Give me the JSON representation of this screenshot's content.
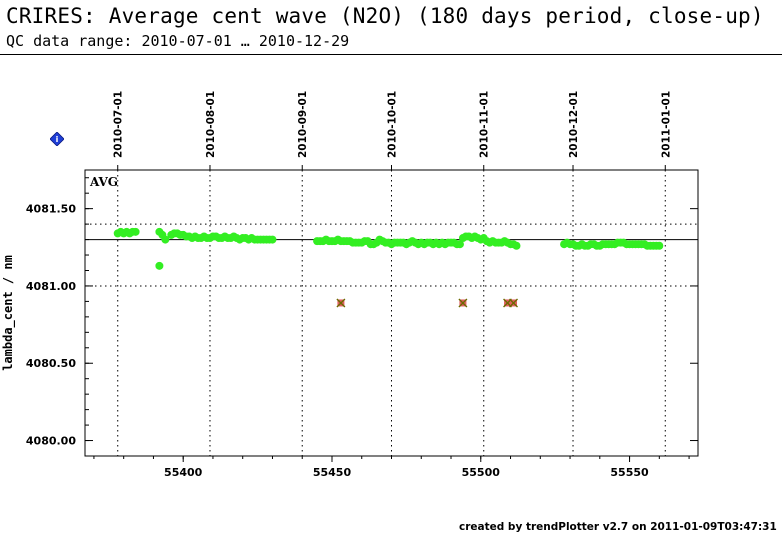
{
  "header": {
    "title": "CRIRES: Average cent wave (N2O) (180 days period, close-up)",
    "subtitle": "QC data range: 2010-07-01 … 2010-12-29"
  },
  "footer": {
    "text": "created by trendPlotter v2.7 on 2011-01-09T03:47:31"
  },
  "marker": {
    "icon": "info-diamond-icon",
    "label": "i",
    "color": "#1f3fd6"
  },
  "colors": {
    "points": "#33ee22",
    "outlier_fill": "#e06060",
    "outlier_cross": "#6a6a00",
    "reference": "#000000",
    "grid": "#000000"
  },
  "chart_data": {
    "type": "scatter",
    "ylabel": "lambda_cent / nm",
    "annotation": "AVG",
    "xlim": [
      55367,
      55573
    ],
    "ylim": [
      4079.9,
      4081.75
    ],
    "x_ticks": [
      55400,
      55450,
      55500,
      55550
    ],
    "x_tick_labels": [
      "55400",
      "55450",
      "55500",
      "55550"
    ],
    "y_ticks": [
      4080.0,
      4080.5,
      4081.0,
      4081.5
    ],
    "y_tick_labels": [
      "4080.00",
      "4080.50",
      "4081.00",
      "4081.50"
    ],
    "date_ticks": [
      {
        "mjd": 55378,
        "label": "2010-07-01"
      },
      {
        "mjd": 55409,
        "label": "2010-08-01"
      },
      {
        "mjd": 55440,
        "label": "2010-09-01"
      },
      {
        "mjd": 55470,
        "label": "2010-10-01"
      },
      {
        "mjd": 55501,
        "label": "2010-11-01"
      },
      {
        "mjd": 55531,
        "label": "2010-12-01"
      },
      {
        "mjd": 55562,
        "label": "2011-01-01"
      }
    ],
    "reference_line": 4081.3,
    "reference_dotted": [
      4081.4,
      4081.0
    ],
    "series": [
      {
        "x": [
          55378,
          55379,
          55380,
          55381,
          55382,
          55383,
          55384,
          55392,
          55393,
          55394,
          55396,
          55397,
          55398,
          55399,
          55400,
          55401,
          55402,
          55403,
          55404,
          55405,
          55406,
          55407,
          55408,
          55409,
          55410,
          55411,
          55412,
          55413,
          55414,
          55415,
          55416,
          55417,
          55418,
          55419,
          55420,
          55421,
          55422,
          55423,
          55424,
          55425,
          55426,
          55427,
          55428,
          55429,
          55430,
          55445,
          55446,
          55447,
          55448,
          55449,
          55450,
          55451,
          55452,
          55453,
          55454,
          55455,
          55456,
          55457,
          55458,
          55459,
          55460,
          55461,
          55462,
          55463,
          55464,
          55465,
          55466,
          55467,
          55468,
          55469,
          55470,
          55471,
          55472,
          55473,
          55474,
          55475,
          55476,
          55477,
          55478,
          55479,
          55480,
          55481,
          55482,
          55483,
          55484,
          55485,
          55486,
          55487,
          55488,
          55489,
          55490,
          55491,
          55492,
          55493,
          55494,
          55495,
          55496,
          55497,
          55498,
          55499,
          55500,
          55501,
          55502,
          55503,
          55504,
          55505,
          55506,
          55507,
          55508,
          55509,
          55510,
          55511,
          55512,
          55528,
          55529,
          55530,
          55531,
          55532,
          55533,
          55534,
          55535,
          55536,
          55537,
          55538,
          55539,
          55540,
          55541,
          55542,
          55543,
          55544,
          55545,
          55546,
          55547,
          55548,
          55549,
          55550,
          55551,
          55552,
          55553,
          55554,
          55555,
          55556,
          55557,
          55558,
          55559,
          55560,
          55392
        ],
        "y": [
          4081.34,
          4081.35,
          4081.34,
          4081.35,
          4081.34,
          4081.35,
          4081.35,
          4081.35,
          4081.33,
          4081.3,
          4081.33,
          4081.34,
          4081.34,
          4081.33,
          4081.33,
          4081.32,
          4081.32,
          4081.31,
          4081.32,
          4081.31,
          4081.31,
          4081.32,
          4081.31,
          4081.31,
          4081.32,
          4081.32,
          4081.31,
          4081.31,
          4081.32,
          4081.31,
          4081.31,
          4081.32,
          4081.31,
          4081.3,
          4081.31,
          4081.31,
          4081.3,
          4081.31,
          4081.3,
          4081.3,
          4081.3,
          4081.3,
          4081.3,
          4081.3,
          4081.3,
          4081.29,
          4081.29,
          4081.29,
          4081.3,
          4081.29,
          4081.29,
          4081.29,
          4081.3,
          4081.29,
          4081.29,
          4081.29,
          4081.29,
          4081.28,
          4081.28,
          4081.28,
          4081.28,
          4081.29,
          4081.29,
          4081.27,
          4081.27,
          4081.28,
          4081.3,
          4081.29,
          4081.28,
          4081.28,
          4081.27,
          4081.28,
          4081.28,
          4081.28,
          4081.28,
          4081.27,
          4081.28,
          4081.29,
          4081.28,
          4081.27,
          4081.28,
          4081.27,
          4081.28,
          4081.28,
          4081.27,
          4081.28,
          4081.27,
          4081.28,
          4081.27,
          4081.28,
          4081.28,
          4081.28,
          4081.27,
          4081.27,
          4081.31,
          4081.32,
          4081.32,
          4081.31,
          4081.32,
          4081.31,
          4081.3,
          4081.31,
          4081.29,
          4081.28,
          4081.29,
          4081.28,
          4081.28,
          4081.28,
          4081.29,
          4081.28,
          4081.27,
          4081.27,
          4081.26,
          4081.27,
          4081.28,
          4081.27,
          4081.27,
          4081.26,
          4081.26,
          4081.27,
          4081.26,
          4081.26,
          4081.27,
          4081.27,
          4081.26,
          4081.26,
          4081.27,
          4081.27,
          4081.27,
          4081.27,
          4081.27,
          4081.28,
          4081.28,
          4081.28,
          4081.27,
          4081.27,
          4081.27,
          4081.27,
          4081.27,
          4081.27,
          4081.27,
          4081.26,
          4081.26,
          4081.26,
          4081.26,
          4081.26,
          4081.13
        ]
      },
      {
        "kind": "outlier",
        "x": [
          55453,
          55494,
          55509,
          55511
        ],
        "y": [
          4080.89,
          4080.89,
          4080.89,
          4080.89
        ]
      }
    ]
  }
}
